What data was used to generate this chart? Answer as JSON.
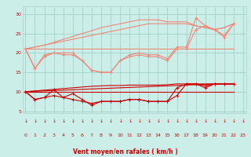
{
  "background_color": "#cceee8",
  "grid_color": "#aad4ce",
  "xlabel": "Vent moyen/en rafales ( km/h )",
  "x_ticks": [
    0,
    1,
    2,
    3,
    4,
    5,
    6,
    7,
    8,
    9,
    10,
    11,
    12,
    13,
    14,
    15,
    16,
    17,
    18,
    19,
    20,
    21,
    22,
    23
  ],
  "y_ticks": [
    5,
    10,
    15,
    20,
    25,
    30
  ],
  "ylim": [
    4.5,
    32
  ],
  "xlim": [
    -0.3,
    23.3
  ],
  "light_lines": [
    {
      "x": [
        0,
        1,
        2,
        3,
        4,
        5,
        6,
        7,
        8,
        9,
        10,
        11,
        12,
        13,
        14,
        15,
        16,
        17,
        18,
        19,
        20,
        21,
        22
      ],
      "y": [
        21,
        16,
        19,
        20,
        19.5,
        19.5,
        18,
        15.5,
        15,
        15,
        18,
        19,
        19.5,
        19,
        19,
        18,
        21,
        21,
        26,
        27,
        26,
        24,
        27.5
      ],
      "marker": true
    },
    {
      "x": [
        0,
        1,
        2,
        3,
        4,
        5,
        6,
        7,
        8,
        9,
        10,
        11,
        12,
        13,
        14,
        15,
        16,
        17,
        18,
        19,
        20,
        21,
        22
      ],
      "y": [
        21,
        16,
        19.5,
        20,
        20,
        20,
        18,
        15.5,
        15,
        15,
        18,
        19.5,
        20,
        19.5,
        19.5,
        18.5,
        21.5,
        21.5,
        29,
        27,
        26,
        24.5,
        27.5
      ],
      "marker": true
    },
    {
      "x": [
        0,
        22
      ],
      "y": [
        21,
        21
      ],
      "marker": false
    },
    {
      "x": [
        0,
        1,
        2,
        3,
        4,
        5,
        6,
        7,
        8,
        9,
        10,
        11,
        12,
        13,
        14,
        15,
        16,
        17,
        18,
        19,
        20,
        21,
        22
      ],
      "y": [
        21,
        21.5,
        22,
        22.5,
        23,
        23.5,
        24,
        24.5,
        25,
        25.5,
        26,
        26.5,
        27,
        27.5,
        27.5,
        27.5,
        27.5,
        27.5,
        27,
        26.5,
        26,
        26.5,
        27.5
      ],
      "marker": false
    },
    {
      "x": [
        0,
        1,
        2,
        3,
        4,
        5,
        6,
        7,
        8,
        9,
        10,
        11,
        12,
        13,
        14,
        15,
        16,
        17,
        18,
        19,
        20,
        21,
        22
      ],
      "y": [
        21,
        21.5,
        22,
        22.7,
        23.5,
        24.2,
        25,
        25.7,
        26.5,
        27,
        27.5,
        28,
        28.5,
        28.5,
        28.5,
        28,
        28,
        28,
        27,
        26.5,
        26,
        26.5,
        27.5
      ],
      "marker": false
    }
  ],
  "dark_lines": [
    {
      "x": [
        0,
        1,
        2,
        3,
        4,
        5,
        6,
        7,
        8,
        9,
        10,
        11,
        12,
        13,
        14,
        15,
        16,
        17,
        18,
        19,
        20,
        21,
        22
      ],
      "y": [
        10,
        8,
        8.5,
        10.5,
        8.5,
        8,
        7.5,
        7,
        7.5,
        7.5,
        7.5,
        8,
        8,
        7.5,
        7.5,
        7.5,
        11,
        12,
        12,
        11,
        12,
        12,
        12
      ],
      "marker": true
    },
    {
      "x": [
        0,
        1,
        2,
        3,
        4,
        5,
        6,
        7,
        8,
        9,
        10,
        11,
        12,
        13,
        14,
        15,
        16,
        17,
        18,
        19,
        20,
        21,
        22
      ],
      "y": [
        10,
        8,
        8.5,
        9,
        8.5,
        9.5,
        8,
        6.5,
        7.5,
        7.5,
        7.5,
        8,
        8,
        7.5,
        7.5,
        7.5,
        9,
        12,
        12,
        11.5,
        12,
        12,
        12
      ],
      "marker": true
    },
    {
      "x": [
        0,
        22
      ],
      "y": [
        10,
        10
      ],
      "marker": false
    },
    {
      "x": [
        0,
        1,
        2,
        3,
        4,
        5,
        6,
        7,
        8,
        9,
        10,
        11,
        12,
        13,
        14,
        15,
        16,
        17,
        18,
        19,
        20,
        21,
        22
      ],
      "y": [
        10,
        10.1,
        10.2,
        10.3,
        10.4,
        10.5,
        10.6,
        10.7,
        10.8,
        10.9,
        11,
        11.1,
        11.2,
        11.3,
        11.4,
        11.5,
        11.6,
        11.7,
        11.8,
        11.9,
        12,
        12,
        12
      ],
      "marker": false
    },
    {
      "x": [
        0,
        1,
        2,
        3,
        4,
        5,
        6,
        7,
        8,
        9,
        10,
        11,
        12,
        13,
        14,
        15,
        16,
        17,
        18,
        19,
        20,
        21,
        22
      ],
      "y": [
        10,
        10.2,
        10.4,
        10.6,
        10.8,
        11,
        11.2,
        11.4,
        11.5,
        11.6,
        11.6,
        11.7,
        11.7,
        11.7,
        11.7,
        11.8,
        12,
        12,
        12,
        12,
        12,
        12,
        12
      ],
      "marker": false
    }
  ],
  "light_color": "#f08878",
  "dark_color": "#cc0000",
  "arrow_color": "#cc0000"
}
